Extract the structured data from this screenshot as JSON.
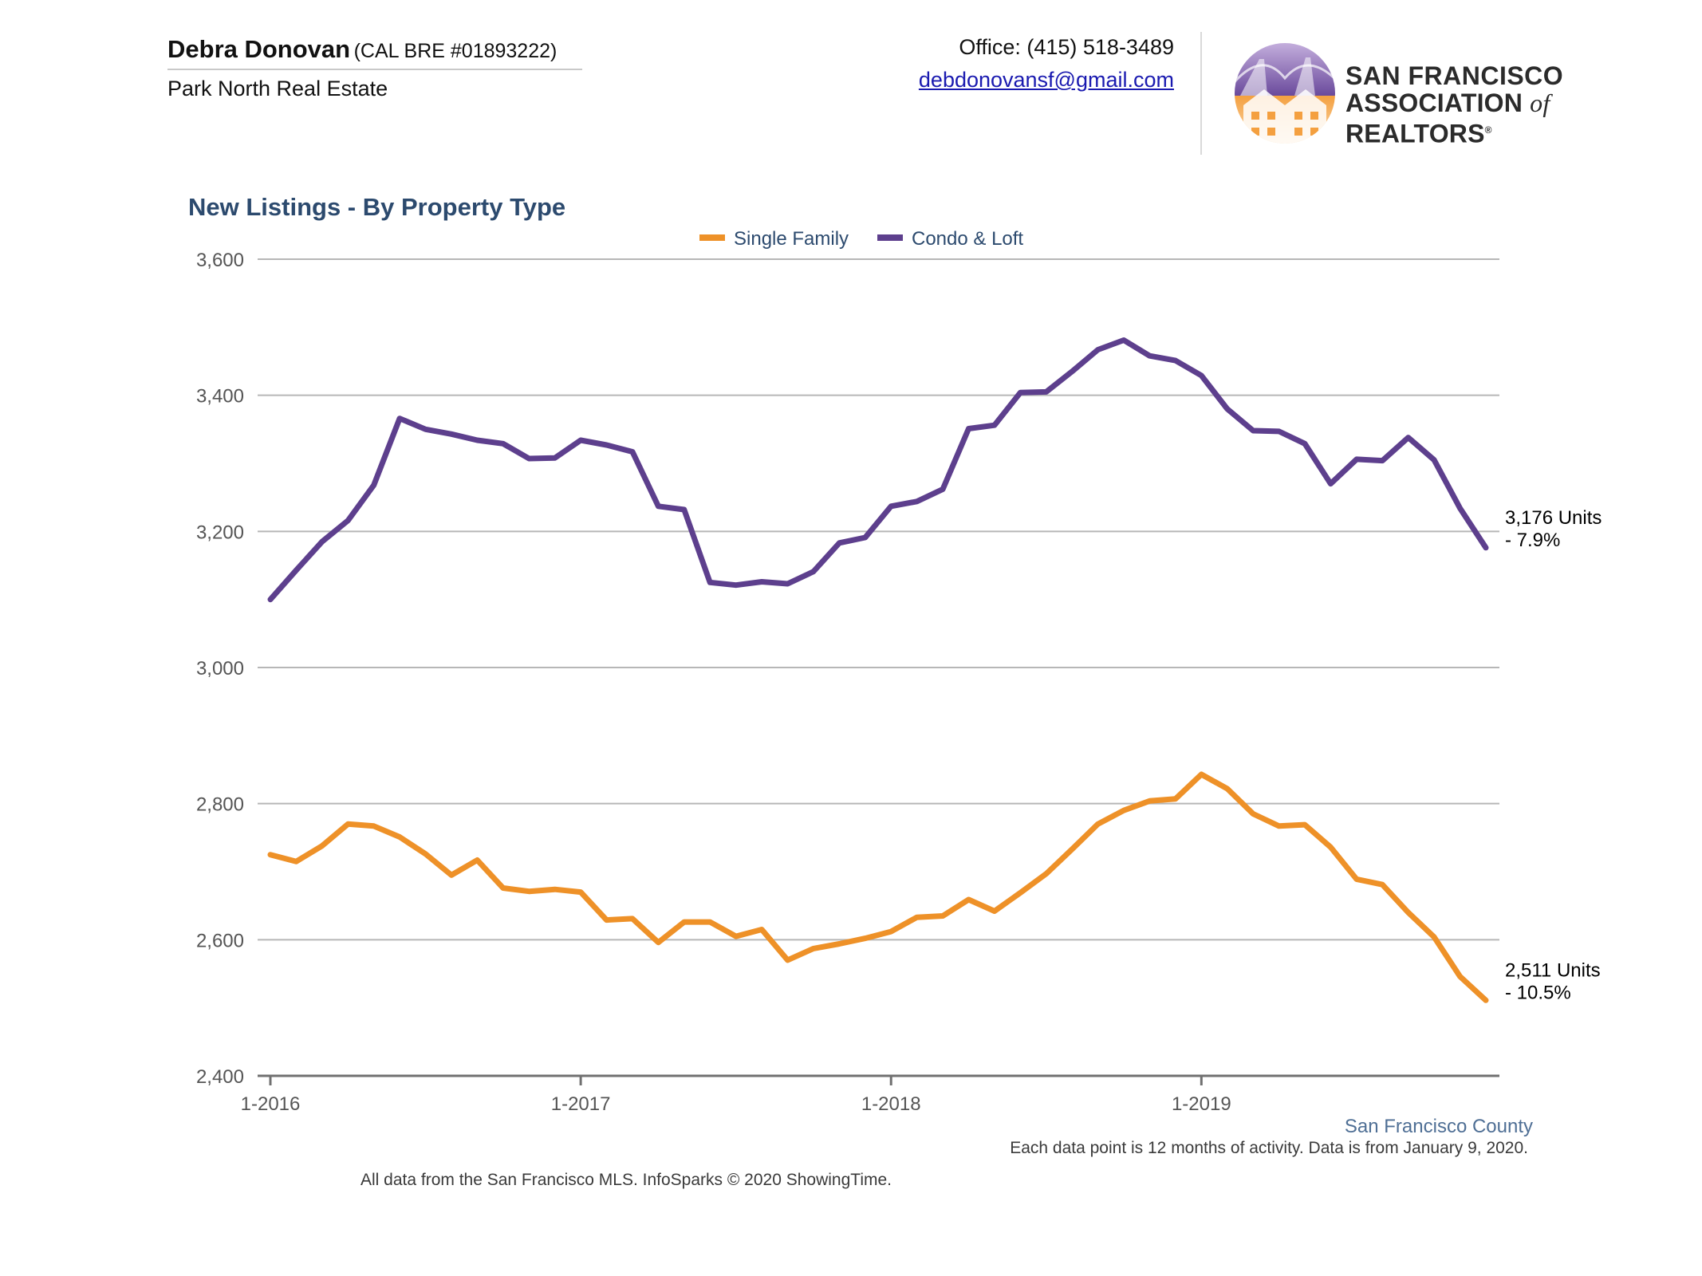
{
  "agent": {
    "name": "Debra Donovan",
    "license": "(CAL BRE #01893222)",
    "company": "Park North Real Estate"
  },
  "contact": {
    "office": "Office: (415) 518-3489",
    "email": "debdonovansf@gmail.com"
  },
  "logo": {
    "line1": "SAN FRANCISCO",
    "line2_a": "ASSOCIATION",
    "line2_of": "of",
    "line2_b": "REALTORS",
    "mark": "®"
  },
  "colors": {
    "single_family": "#ee9128",
    "condo_loft": "#5d3f8d",
    "title": "#2c4a6e",
    "grid": "#b7b7b7",
    "axis": "#707070",
    "county": "#4f6f95"
  },
  "chart_data": {
    "type": "line",
    "title": "New Listings - By Property Type",
    "xlabel": "",
    "ylabel": "",
    "x_ticks": [
      "1-2016",
      "1-2017",
      "1-2018",
      "1-2019"
    ],
    "y_ticks": [
      "2,400",
      "2,600",
      "2,800",
      "3,000",
      "3,200",
      "3,400",
      "3,600"
    ],
    "ylim": [
      2400,
      3600
    ],
    "grid": true,
    "legend_position": "top-center",
    "x_period": "monthly, 1-2016 to 12-2019",
    "series": [
      {
        "name": "Single Family",
        "values": [
          2725,
          2715,
          2738,
          2770,
          2767,
          2751,
          2726,
          2695,
          2717,
          2676,
          2671,
          2674,
          2670,
          2629,
          2631,
          2596,
          2626,
          2626,
          2605,
          2615,
          2570,
          2587,
          2594,
          2602,
          2612,
          2633,
          2635,
          2659,
          2642,
          2669,
          2697,
          2733,
          2770,
          2790,
          2804,
          2807,
          2843,
          2822,
          2785,
          2767,
          2769,
          2736,
          2689,
          2681,
          2640,
          2604,
          2546,
          2511
        ],
        "end_label": "2,511 Units",
        "end_change": "- 10.5%"
      },
      {
        "name": "Condo & Loft",
        "values": [
          3100,
          3143,
          3185,
          3216,
          3268,
          3366,
          3350,
          3343,
          3334,
          3329,
          3307,
          3308,
          3334,
          3327,
          3317,
          3237,
          3232,
          3125,
          3121,
          3126,
          3123,
          3141,
          3183,
          3191,
          3237,
          3244,
          3262,
          3351,
          3356,
          3404,
          3405,
          3435,
          3467,
          3481,
          3458,
          3451,
          3429,
          3380,
          3348,
          3347,
          3329,
          3270,
          3306,
          3304,
          3338,
          3305,
          3234,
          3176
        ],
        "end_label": "3,176 Units",
        "end_change": "- 7.9%"
      }
    ]
  },
  "annotations": {
    "region": "San Francisco County",
    "note": "Each data point is 12 months of activity. Data is from January 9, 2020.",
    "source": "All data from the San Francisco MLS. InfoSparks © 2020 ShowingTime."
  }
}
